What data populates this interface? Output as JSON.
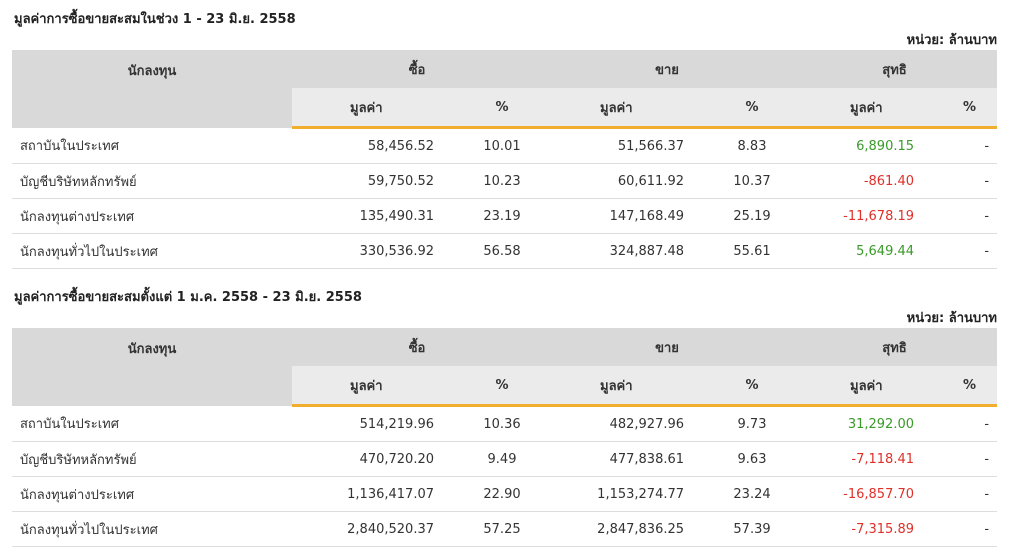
{
  "tables": [
    {
      "title": "มูลค่าการซื้อขายสะสมในช่วง 1 - 23 มิ.ย. 2558",
      "unit": "หน่วย: ล้านบาท",
      "headers": {
        "investor": "นักลงทุน",
        "buy": "ซื้อ",
        "sell": "ขาย",
        "net": "สุทธิ",
        "value": "มูลค่า",
        "pct": "%"
      },
      "rows": [
        {
          "name": "สถาบันในประเทศ",
          "buy_value": "58,456.52",
          "buy_pct": "10.01",
          "sell_value": "51,566.37",
          "sell_pct": "8.83",
          "net_value": "6,890.15",
          "net_sign": "pos",
          "net_pct": "-"
        },
        {
          "name": "บัญชีบริษัทหลักทรัพย์",
          "buy_value": "59,750.52",
          "buy_pct": "10.23",
          "sell_value": "60,611.92",
          "sell_pct": "10.37",
          "net_value": "-861.40",
          "net_sign": "neg",
          "net_pct": "-"
        },
        {
          "name": "นักลงทุนต่างประเทศ",
          "buy_value": "135,490.31",
          "buy_pct": "23.19",
          "sell_value": "147,168.49",
          "sell_pct": "25.19",
          "net_value": "-11,678.19",
          "net_sign": "neg",
          "net_pct": "-"
        },
        {
          "name": "นักลงทุนทั่วไปในประเทศ",
          "buy_value": "330,536.92",
          "buy_pct": "56.58",
          "sell_value": "324,887.48",
          "sell_pct": "55.61",
          "net_value": "5,649.44",
          "net_sign": "pos",
          "net_pct": "-"
        }
      ]
    },
    {
      "title": "มูลค่าการซื้อขายสะสมตั้งแต่ 1 ม.ค. 2558 - 23 มิ.ย. 2558",
      "unit": "หน่วย: ล้านบาท",
      "headers": {
        "investor": "นักลงทุน",
        "buy": "ซื้อ",
        "sell": "ขาย",
        "net": "สุทธิ",
        "value": "มูลค่า",
        "pct": "%"
      },
      "rows": [
        {
          "name": "สถาบันในประเทศ",
          "buy_value": "514,219.96",
          "buy_pct": "10.36",
          "sell_value": "482,927.96",
          "sell_pct": "9.73",
          "net_value": "31,292.00",
          "net_sign": "pos",
          "net_pct": "-"
        },
        {
          "name": "บัญชีบริษัทหลักทรัพย์",
          "buy_value": "470,720.20",
          "buy_pct": "9.49",
          "sell_value": "477,838.61",
          "sell_pct": "9.63",
          "net_value": "-7,118.41",
          "net_sign": "neg",
          "net_pct": "-"
        },
        {
          "name": "นักลงทุนต่างประเทศ",
          "buy_value": "1,136,417.07",
          "buy_pct": "22.90",
          "sell_value": "1,153,274.77",
          "sell_pct": "23.24",
          "net_value": "-16,857.70",
          "net_sign": "neg",
          "net_pct": "-"
        },
        {
          "name": "นักลงทุนทั่วไปในประเทศ",
          "buy_value": "2,840,520.37",
          "buy_pct": "57.25",
          "sell_value": "2,847,836.25",
          "sell_pct": "57.39",
          "net_value": "-7,315.89",
          "net_sign": "neg",
          "net_pct": "-"
        }
      ]
    }
  ]
}
